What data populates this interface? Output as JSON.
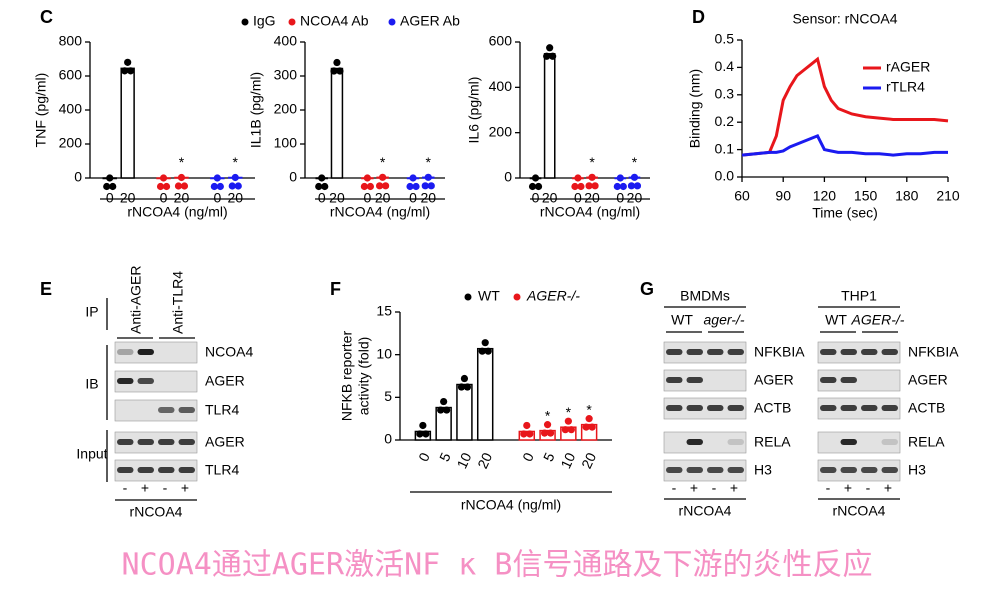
{
  "panel_labels": [
    "C",
    "D",
    "E",
    "F",
    "G"
  ],
  "chart_data": [
    {
      "type": "bar",
      "ylabel": "TNF (pg/ml)",
      "xlabel": "rNCOA4 (ng/ml)",
      "categories": [
        "0",
        "20"
      ],
      "series": [
        {
          "name": "IgG",
          "color": "#000000",
          "values": [
            0,
            645
          ],
          "significance": [
            null,
            null
          ]
        },
        {
          "name": "NCOA4 Ab",
          "color": "#e8161b",
          "values": [
            0,
            3
          ],
          "significance": [
            null,
            "*"
          ]
        },
        {
          "name": "AGER Ab",
          "color": "#1b1bf0",
          "values": [
            0,
            3
          ],
          "significance": [
            null,
            "*"
          ]
        }
      ],
      "ylim": [
        0,
        800
      ],
      "yticks": [
        0,
        200,
        400,
        600,
        800
      ],
      "legend": true
    },
    {
      "type": "bar",
      "ylabel": "IL1B (pg/ml)",
      "xlabel": "rNCOA4 (ng/ml)",
      "categories": [
        "0",
        "20"
      ],
      "series": [
        {
          "color": "#000000",
          "values": [
            0,
            322
          ],
          "significance": [
            null,
            null
          ]
        },
        {
          "color": "#e8161b",
          "values": [
            0,
            2
          ],
          "significance": [
            null,
            "*"
          ]
        },
        {
          "color": "#1b1bf0",
          "values": [
            0,
            2
          ],
          "significance": [
            null,
            "*"
          ]
        }
      ],
      "ylim": [
        0,
        400
      ],
      "yticks": [
        0,
        100,
        200,
        300,
        400
      ]
    },
    {
      "type": "bar",
      "ylabel": "IL6 (pg/ml)",
      "xlabel": "rNCOA4 (ng/ml)",
      "categories": [
        "0",
        "20"
      ],
      "series": [
        {
          "color": "#000000",
          "values": [
            0,
            548
          ],
          "significance": [
            null,
            null
          ]
        },
        {
          "color": "#e8161b",
          "values": [
            0,
            3
          ],
          "significance": [
            null,
            "*"
          ]
        },
        {
          "color": "#1b1bf0",
          "values": [
            0,
            3
          ],
          "significance": [
            null,
            "*"
          ]
        }
      ],
      "ylim": [
        0,
        600
      ],
      "yticks": [
        0,
        200,
        400,
        600
      ]
    },
    {
      "type": "line",
      "title": "Sensor: rNCOA4",
      "xlabel": "Time (sec)",
      "ylabel": "Binding (nm)",
      "x": [
        60,
        70,
        80,
        85,
        90,
        95,
        100,
        105,
        110,
        115,
        120,
        125,
        130,
        140,
        150,
        160,
        170,
        180,
        190,
        200,
        210
      ],
      "series": [
        {
          "name": "rAGER",
          "color": "#e8161b",
          "values": [
            0.08,
            0.085,
            0.09,
            0.15,
            0.28,
            0.33,
            0.37,
            0.39,
            0.41,
            0.43,
            0.33,
            0.28,
            0.25,
            0.23,
            0.22,
            0.215,
            0.21,
            0.21,
            0.21,
            0.21,
            0.205
          ]
        },
        {
          "name": "rTLR4",
          "color": "#1b1bf0",
          "values": [
            0.08,
            0.085,
            0.09,
            0.09,
            0.095,
            0.11,
            0.12,
            0.13,
            0.14,
            0.15,
            0.1,
            0.095,
            0.09,
            0.09,
            0.085,
            0.085,
            0.08,
            0.085,
            0.085,
            0.09,
            0.09
          ]
        }
      ],
      "xlim": [
        60,
        210
      ],
      "xticks": [
        60,
        90,
        120,
        150,
        180,
        210
      ],
      "ylim": [
        0,
        0.5
      ],
      "yticks": [
        {
          "value": 0,
          "label": "0.0"
        },
        0.1,
        0.2,
        0.3,
        0.4,
        0.5
      ],
      "legend": "top-right"
    },
    {
      "type": "bar",
      "ylabel": [
        "NFKB reporter",
        "activity (fold)"
      ],
      "xlabel": "rNCOA4 (ng/ml)",
      "categories": [
        "0",
        "5",
        "10",
        "20"
      ],
      "series": [
        {
          "name": "WT",
          "color": "#000000",
          "values": [
            1,
            3.8,
            6.5,
            10.7
          ],
          "significance": [
            null,
            null,
            null,
            null
          ]
        },
        {
          "name": "AGER-/-",
          "color": "#e8161b",
          "values": [
            1,
            1.1,
            1.5,
            1.8
          ],
          "significance": [
            null,
            "*",
            "*",
            "*"
          ]
        }
      ],
      "ylim": [
        0,
        15
      ],
      "yticks": [
        0,
        5,
        10,
        15
      ],
      "legend": true
    }
  ],
  "blots": {
    "E": {
      "ip_columns": [
        "Anti-AGER",
        "Anti-TLR4"
      ],
      "groups": [
        "IP",
        "IB",
        "Input"
      ],
      "rows": [
        "NCOA4",
        "AGER",
        "TLR4",
        "AGER",
        "TLR4"
      ],
      "signs": [
        "-",
        "+",
        "-",
        "+"
      ],
      "treatment": "rNCOA4"
    },
    "G": [
      {
        "cell": "BMDMs",
        "genotypes": [
          "WT",
          "ager-/-"
        ],
        "rows": [
          "NFKBIA",
          "AGER",
          "ACTB",
          "RELA",
          "H3"
        ],
        "signs": [
          "-",
          "+",
          "-",
          "+"
        ],
        "treatment": "rNCOA4"
      },
      {
        "cell": "THP1",
        "genotypes": [
          "WT",
          "AGER-/-"
        ],
        "rows": [
          "NFKBIA",
          "AGER",
          "ACTB",
          "RELA",
          "H3"
        ],
        "signs": [
          "-",
          "+",
          "-",
          "+"
        ],
        "treatment": "rNCOA4"
      }
    ]
  },
  "caption": "NCOA4通过AGER激活NF κ B信号通路及下游的炎性反应"
}
